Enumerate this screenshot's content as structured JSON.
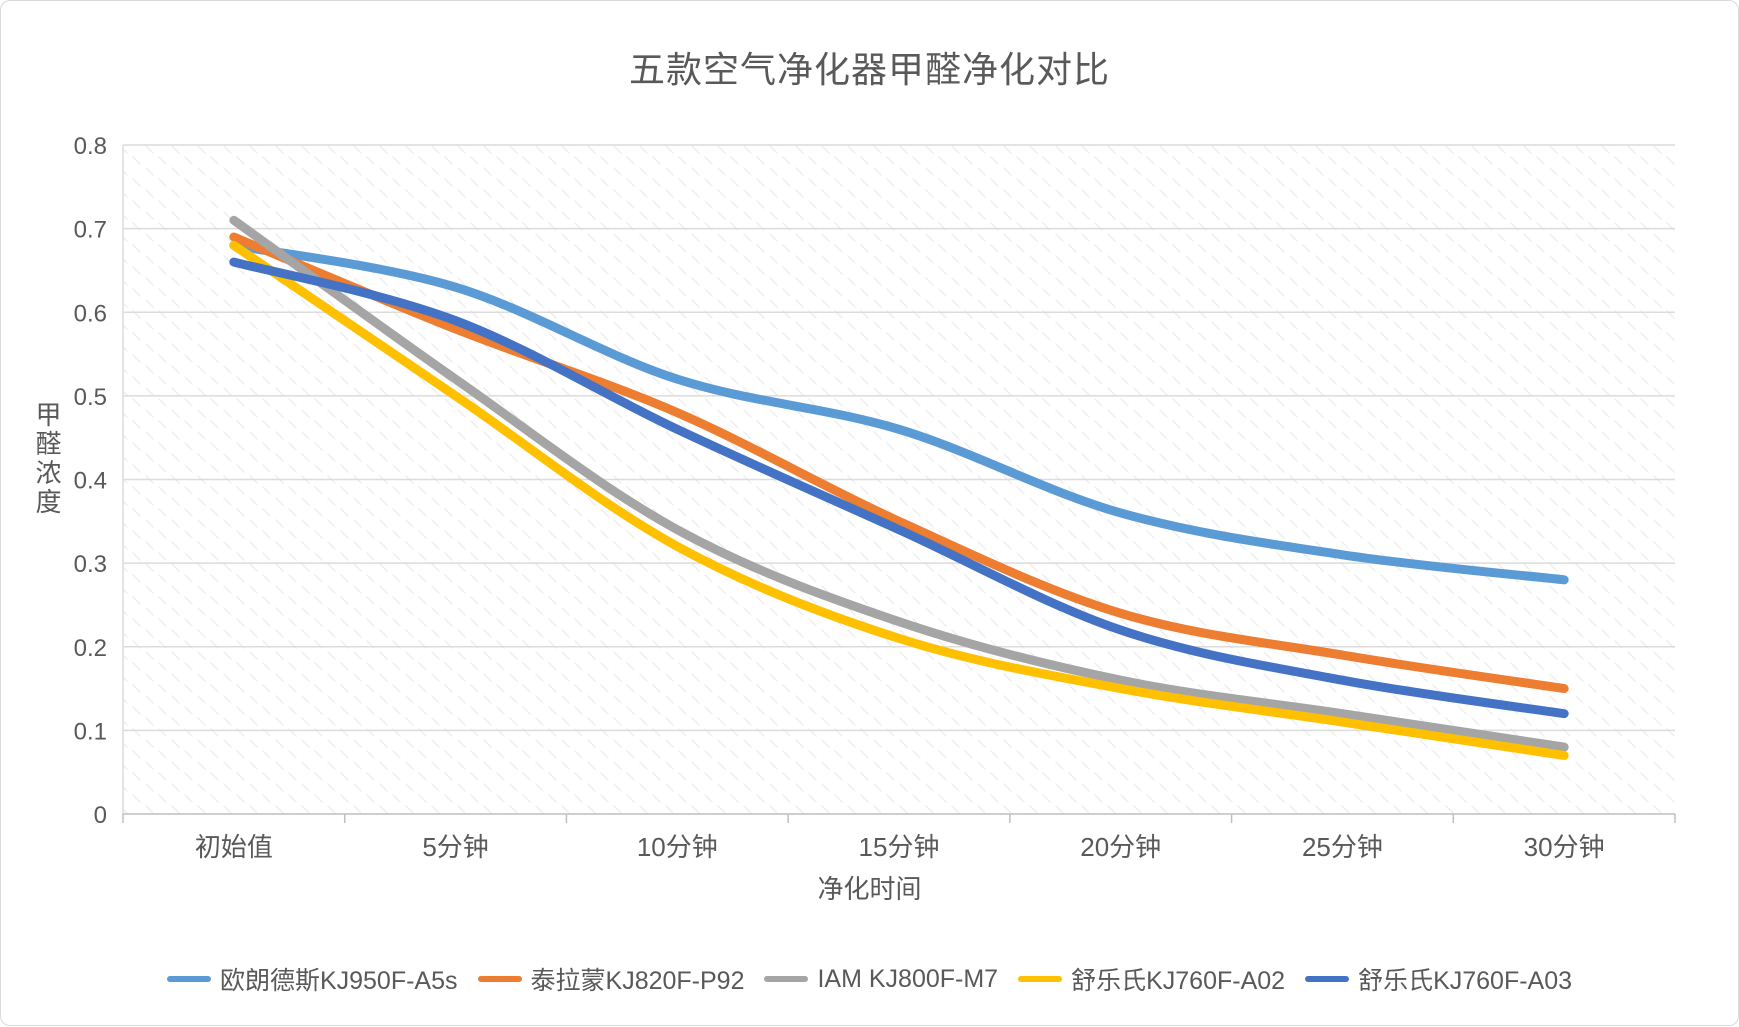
{
  "title": "五款空气净化器甲醛净化对比",
  "chart_data": {
    "type": "line",
    "smooth": true,
    "title": "五款空气净化器甲醛净化对比",
    "xlabel": "净化时间",
    "ylabel": "甲醛浓度",
    "categories": [
      "初始值",
      "5分钟",
      "10分钟",
      "15分钟",
      "20分钟",
      "25分钟",
      "30分钟"
    ],
    "series": [
      {
        "name": "欧朗德斯KJ950F-A5s",
        "color": "#5B9BD5",
        "values": [
          0.68,
          0.63,
          0.52,
          0.46,
          0.36,
          0.31,
          0.28
        ]
      },
      {
        "name": "泰拉蒙KJ820F-P92",
        "color": "#ED7D31",
        "values": [
          0.69,
          0.58,
          0.48,
          0.35,
          0.24,
          0.19,
          0.15
        ]
      },
      {
        "name": "IAM KJ800F-M7",
        "color": "#A5A5A5",
        "values": [
          0.71,
          0.52,
          0.34,
          0.23,
          0.16,
          0.12,
          0.08
        ]
      },
      {
        "name": "舒乐氏KJ760F-A02",
        "color": "#FFC000",
        "values": [
          0.68,
          0.5,
          0.32,
          0.21,
          0.15,
          0.11,
          0.07
        ]
      },
      {
        "name": "舒乐氏KJ760F-A03",
        "color": "#4472C4",
        "values": [
          0.66,
          0.59,
          0.46,
          0.34,
          0.22,
          0.16,
          0.12
        ]
      }
    ],
    "ylim": [
      0,
      0.8
    ],
    "yticks": [
      "0",
      "0.1",
      "0.2",
      "0.3",
      "0.4",
      "0.5",
      "0.6",
      "0.7",
      "0.8"
    ],
    "grid": true,
    "legend_position": "bottom"
  },
  "style_colors": {
    "text": "#595959",
    "gridline": "#dcdcdc",
    "axis_line": "#bfbfbf",
    "hatch": "#ededed",
    "background": "#ffffff"
  }
}
